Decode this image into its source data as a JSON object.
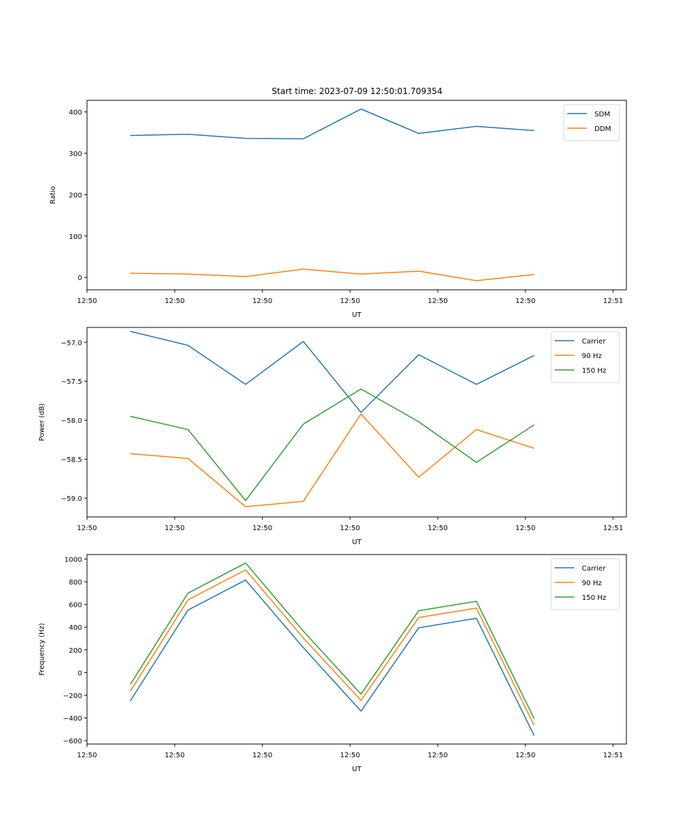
{
  "colors": {
    "c0": "#1f77b4",
    "c1": "#ff7f0e",
    "c2": "#2ca02c"
  },
  "chart_data": [
    {
      "type": "line",
      "title": "Start time: 2023-07-09 12:50:01.709354",
      "xlabel": "UT",
      "ylabel": "Ratio",
      "x": [
        0,
        1,
        2,
        3,
        4,
        5,
        6,
        7
      ],
      "xlim": [
        -0.75,
        8.6
      ],
      "x_ticks": [
        -0.75,
        0.77,
        2.29,
        3.81,
        5.33,
        6.85,
        8.37
      ],
      "x_tick_labels": [
        "12:50",
        "12:50",
        "12:50",
        "12:50",
        "12:50",
        "12:50",
        "12:51"
      ],
      "ylim": [
        -30,
        428
      ],
      "y_ticks": [
        0,
        100,
        200,
        300,
        400
      ],
      "y_tick_labels": [
        "0",
        "100",
        "200",
        "300",
        "400"
      ],
      "legend": "upper right",
      "series": [
        {
          "name": "SDM",
          "color": "#1f77b4",
          "values": [
            343,
            346,
            336,
            335,
            407,
            348,
            365,
            355
          ]
        },
        {
          "name": "DDM",
          "color": "#ff7f0e",
          "values": [
            10,
            8,
            2,
            20,
            8,
            15,
            -8,
            7
          ]
        }
      ]
    },
    {
      "type": "line",
      "xlabel": "UT",
      "ylabel": "Power (dB)",
      "x": [
        0,
        1,
        2,
        3,
        4,
        5,
        6,
        7
      ],
      "xlim": [
        -0.75,
        8.6
      ],
      "x_ticks": [
        -0.75,
        0.77,
        2.29,
        3.81,
        5.33,
        6.85,
        8.37
      ],
      "x_tick_labels": [
        "12:50",
        "12:50",
        "12:50",
        "12:50",
        "12:50",
        "12:50",
        "12:51"
      ],
      "ylim": [
        -59.24,
        -56.81
      ],
      "y_ticks": [
        -59.0,
        -58.5,
        -58.0,
        -57.5,
        -57.0
      ],
      "y_tick_labels": [
        "−59.0",
        "−58.5",
        "−58.0",
        "−57.5",
        "−57.0"
      ],
      "legend": "upper right",
      "series": [
        {
          "name": "Carrier",
          "color": "#1f77b4",
          "values": [
            -56.86,
            -57.04,
            -57.54,
            -56.99,
            -57.9,
            -57.16,
            -57.54,
            -57.17
          ]
        },
        {
          "name": "90 Hz",
          "color": "#ff7f0e",
          "values": [
            -58.43,
            -58.49,
            -59.11,
            -59.04,
            -57.92,
            -58.73,
            -58.12,
            -58.36
          ]
        },
        {
          "name": "150 Hz",
          "color": "#2ca02c",
          "values": [
            -57.95,
            -58.12,
            -59.03,
            -58.05,
            -57.6,
            -58.02,
            -58.54,
            -58.06
          ]
        }
      ]
    },
    {
      "type": "line",
      "xlabel": "UT",
      "ylabel": "Frequency (Hz)",
      "x": [
        0,
        1,
        2,
        3,
        4,
        5,
        6,
        7
      ],
      "xlim": [
        -0.75,
        8.6
      ],
      "x_ticks": [
        -0.75,
        0.77,
        2.29,
        3.81,
        5.33,
        6.85,
        8.37
      ],
      "x_tick_labels": [
        "12:50",
        "12:50",
        "12:50",
        "12:50",
        "12:50",
        "12:50",
        "12:51"
      ],
      "ylim": [
        -630,
        1040
      ],
      "y_ticks": [
        -600,
        -400,
        -200,
        0,
        200,
        400,
        600,
        800,
        1000
      ],
      "y_tick_labels": [
        "−600",
        "−400",
        "−200",
        "0",
        "200",
        "400",
        "600",
        "800",
        "1000"
      ],
      "legend": "upper right",
      "series": [
        {
          "name": "Carrier",
          "color": "#1f77b4",
          "values": [
            -250,
            550,
            815,
            220,
            -340,
            395,
            478,
            -555
          ]
        },
        {
          "name": "90 Hz",
          "color": "#ff7f0e",
          "values": [
            -165,
            640,
            905,
            305,
            -245,
            485,
            568,
            -465
          ]
        },
        {
          "name": "150 Hz",
          "color": "#2ca02c",
          "values": [
            -105,
            700,
            965,
            365,
            -190,
            545,
            628,
            -405
          ]
        }
      ]
    }
  ]
}
